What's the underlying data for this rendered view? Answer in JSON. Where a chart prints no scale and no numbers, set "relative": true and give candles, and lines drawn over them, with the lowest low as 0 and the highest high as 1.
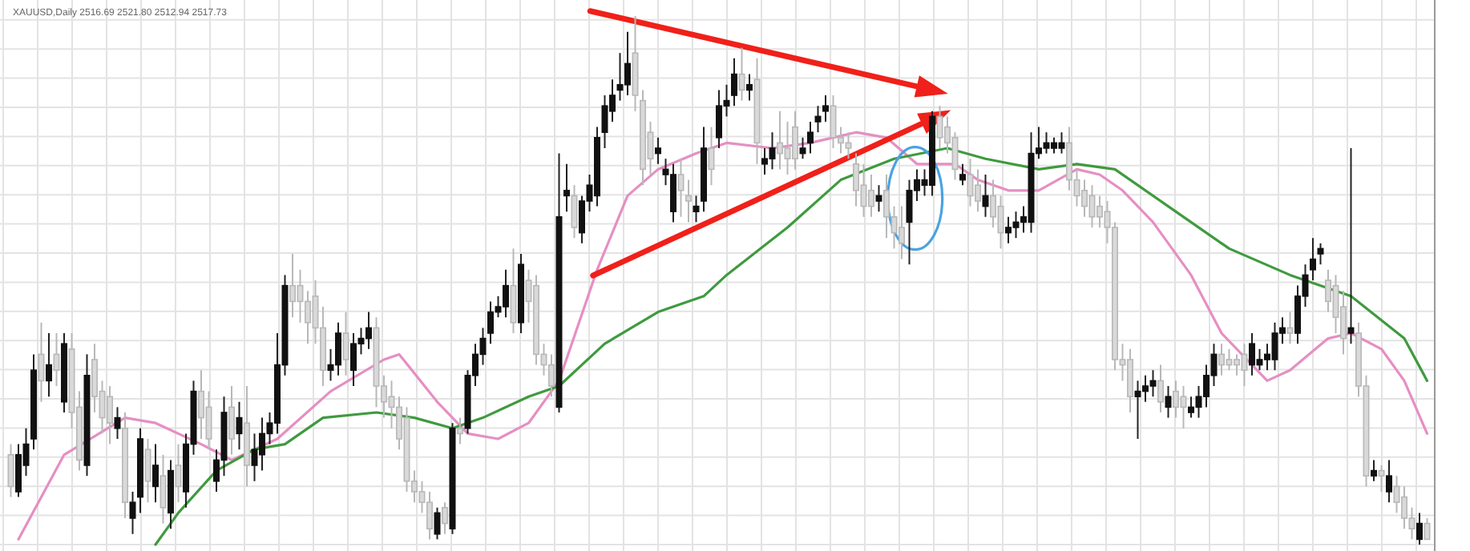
{
  "chart_data": {
    "type": "candlestick",
    "title": "XAUUSD,Daily 2516.69 2521.80 2512.94 2517.73",
    "relative": true,
    "grid": true,
    "categories": [
      null,
      null,
      null,
      null,
      null,
      null,
      null,
      null,
      null,
      null,
      null,
      null,
      null,
      null,
      null,
      null,
      null,
      null,
      null,
      null,
      null,
      null,
      null,
      null,
      null,
      null,
      null,
      null,
      null,
      null,
      null,
      null,
      null,
      null,
      null,
      null,
      null,
      null,
      null,
      null,
      null,
      null,
      null,
      null,
      null,
      null,
      null,
      null,
      null,
      null,
      null,
      null,
      null,
      null,
      null,
      null,
      null,
      null,
      null,
      null,
      null,
      null,
      null,
      null,
      null,
      null,
      null,
      null,
      null,
      null,
      null,
      null,
      null,
      null,
      null,
      null,
      null,
      null,
      null,
      null,
      null,
      null,
      null,
      null,
      null,
      null,
      null,
      null,
      null,
      null,
      null,
      null,
      null,
      null,
      null,
      null,
      null,
      null,
      null,
      null,
      null,
      null,
      null,
      null,
      null,
      null,
      null,
      null,
      null,
      null,
      null,
      null,
      null,
      null,
      null,
      null,
      null,
      null,
      null,
      null,
      null,
      null,
      null,
      null,
      null,
      null,
      null,
      null,
      null,
      null,
      null,
      null,
      null,
      null,
      null,
      null,
      null,
      null,
      null,
      null,
      null,
      null,
      null,
      null,
      null,
      null,
      null,
      null,
      null,
      null,
      null,
      null,
      null,
      null,
      null,
      null,
      null,
      null,
      null,
      null,
      null,
      null,
      null,
      null,
      null,
      null,
      null,
      null,
      null,
      null,
      null,
      null,
      null,
      null,
      null,
      null,
      null,
      null,
      null,
      null,
      null,
      null,
      null,
      null,
      null,
      null,
      null
    ],
    "ohlc": [
      [
        0.17,
        0.19,
        0.09,
        0.11
      ],
      [
        0.1,
        0.19,
        0.09,
        0.17
      ],
      [
        0.15,
        0.22,
        0.13,
        0.19
      ],
      [
        0.2,
        0.36,
        0.18,
        0.33
      ],
      [
        0.36,
        0.42,
        0.27,
        0.31
      ],
      [
        0.31,
        0.4,
        0.28,
        0.34
      ],
      [
        0.36,
        0.4,
        0.3,
        0.33
      ],
      [
        0.27,
        0.4,
        0.25,
        0.38
      ],
      [
        0.37,
        0.4,
        0.22,
        0.25
      ],
      [
        0.26,
        0.29,
        0.14,
        0.16
      ],
      [
        0.15,
        0.36,
        0.13,
        0.32
      ],
      [
        0.35,
        0.38,
        0.25,
        0.28
      ],
      [
        0.29,
        0.31,
        0.21,
        0.24
      ],
      [
        0.28,
        0.3,
        0.19,
        0.23
      ],
      [
        0.22,
        0.26,
        0.2,
        0.24
      ],
      [
        0.22,
        0.25,
        0.05,
        0.08
      ],
      [
        0.05,
        0.1,
        0.02,
        0.08
      ],
      [
        0.09,
        0.22,
        0.06,
        0.2
      ],
      [
        0.18,
        0.2,
        0.08,
        0.12
      ],
      [
        0.11,
        0.19,
        0.08,
        0.15
      ],
      [
        0.13,
        0.17,
        0.04,
        0.07
      ],
      [
        0.06,
        0.16,
        0.03,
        0.14
      ],
      [
        0.15,
        0.19,
        0.08,
        0.11
      ],
      [
        0.1,
        0.21,
        0.07,
        0.19
      ],
      [
        0.19,
        0.31,
        0.17,
        0.29
      ],
      [
        0.29,
        0.33,
        0.2,
        0.24
      ],
      [
        0.26,
        0.29,
        0.18,
        0.2
      ],
      [
        0.12,
        0.18,
        0.1,
        0.16
      ],
      [
        0.16,
        0.28,
        0.13,
        0.25
      ],
      [
        0.26,
        0.3,
        0.17,
        0.2
      ],
      [
        0.21,
        0.27,
        0.18,
        0.24
      ],
      [
        0.23,
        0.3,
        0.11,
        0.15
      ],
      [
        0.15,
        0.21,
        0.12,
        0.18
      ],
      [
        0.17,
        0.24,
        0.14,
        0.21
      ],
      [
        0.21,
        0.25,
        0.19,
        0.23
      ],
      [
        0.23,
        0.4,
        0.21,
        0.34
      ],
      [
        0.34,
        0.51,
        0.32,
        0.49
      ],
      [
        0.49,
        0.55,
        0.43,
        0.46
      ],
      [
        0.49,
        0.52,
        0.42,
        0.46
      ],
      [
        0.46,
        0.48,
        0.38,
        0.42
      ],
      [
        0.47,
        0.5,
        0.38,
        0.41
      ],
      [
        0.41,
        0.45,
        0.3,
        0.33
      ],
      [
        0.33,
        0.37,
        0.31,
        0.34
      ],
      [
        0.34,
        0.42,
        0.32,
        0.4
      ],
      [
        0.4,
        0.44,
        0.32,
        0.35
      ],
      [
        0.33,
        0.4,
        0.3,
        0.38
      ],
      [
        0.38,
        0.41,
        0.36,
        0.39
      ],
      [
        0.39,
        0.44,
        0.37,
        0.41
      ],
      [
        0.41,
        0.43,
        0.26,
        0.3
      ],
      [
        0.3,
        0.32,
        0.24,
        0.27
      ],
      [
        0.28,
        0.31,
        0.22,
        0.26
      ],
      [
        0.26,
        0.28,
        0.18,
        0.2
      ],
      [
        0.24,
        0.26,
        0.1,
        0.12
      ],
      [
        0.12,
        0.14,
        0.08,
        0.1
      ],
      [
        0.1,
        0.12,
        0.06,
        0.08
      ],
      [
        0.08,
        0.1,
        0.01,
        0.03
      ],
      [
        0.02,
        0.07,
        0.01,
        0.06
      ],
      [
        0.07,
        0.08,
        0.02,
        0.04
      ],
      [
        0.03,
        0.23,
        0.02,
        0.22
      ],
      [
        0.22,
        0.24,
        0.19,
        0.21
      ],
      [
        0.22,
        0.33,
        0.21,
        0.32
      ],
      [
        0.32,
        0.38,
        0.3,
        0.36
      ],
      [
        0.36,
        0.41,
        0.34,
        0.39
      ],
      [
        0.4,
        0.46,
        0.38,
        0.44
      ],
      [
        0.44,
        0.47,
        0.43,
        0.45
      ],
      [
        0.45,
        0.52,
        0.43,
        0.49
      ],
      [
        0.49,
        0.56,
        0.4,
        0.42
      ],
      [
        0.42,
        0.55,
        0.4,
        0.53
      ],
      [
        0.5,
        0.52,
        0.42,
        0.46
      ],
      [
        0.49,
        0.51,
        0.34,
        0.36
      ],
      [
        0.36,
        0.38,
        0.32,
        0.34
      ],
      [
        0.34,
        0.36,
        0.28,
        0.3
      ],
      [
        0.26,
        0.74,
        0.25,
        0.62
      ],
      [
        0.66,
        0.72,
        0.63,
        0.67
      ],
      [
        0.66,
        0.68,
        0.58,
        0.6
      ],
      [
        0.59,
        0.66,
        0.57,
        0.65
      ],
      [
        0.65,
        0.7,
        0.63,
        0.68
      ],
      [
        0.66,
        0.79,
        0.64,
        0.77
      ],
      [
        0.78,
        0.85,
        0.75,
        0.83
      ],
      [
        0.82,
        0.88,
        0.8,
        0.85
      ],
      [
        0.86,
        0.93,
        0.84,
        0.87
      ],
      [
        0.87,
        0.97,
        0.85,
        0.91
      ],
      [
        0.93,
        1,
        0.82,
        0.85
      ],
      [
        0.84,
        0.86,
        0.68,
        0.71
      ],
      [
        0.78,
        0.8,
        0.7,
        0.73
      ],
      [
        0.74,
        0.77,
        0.72,
        0.75
      ],
      [
        0.7,
        0.73,
        0.68,
        0.71
      ],
      [
        0.63,
        0.72,
        0.61,
        0.7
      ],
      [
        0.7,
        0.73,
        0.62,
        0.67
      ],
      [
        0.66,
        0.69,
        0.61,
        0.65
      ],
      [
        0.63,
        0.66,
        0.61,
        0.64
      ],
      [
        0.65,
        0.79,
        0.63,
        0.75
      ],
      [
        0.75,
        0.79,
        0.68,
        0.71
      ],
      [
        0.77,
        0.86,
        0.75,
        0.83
      ],
      [
        0.83,
        0.87,
        0.81,
        0.84
      ],
      [
        0.85,
        0.92,
        0.83,
        0.89
      ],
      [
        0.89,
        0.94,
        0.84,
        0.86
      ],
      [
        0.86,
        0.89,
        0.84,
        0.87
      ],
      [
        0.88,
        0.92,
        0.72,
        0.76
      ],
      [
        0.72,
        0.75,
        0.7,
        0.73
      ],
      [
        0.73,
        0.78,
        0.71,
        0.75
      ],
      [
        0.76,
        0.82,
        0.71,
        0.74
      ],
      [
        0.75,
        0.8,
        0.7,
        0.73
      ],
      [
        0.79,
        0.82,
        0.71,
        0.73
      ],
      [
        0.74,
        0.77,
        0.73,
        0.75
      ],
      [
        0.76,
        0.8,
        0.74,
        0.78
      ],
      [
        0.8,
        0.83,
        0.78,
        0.81
      ],
      [
        0.82,
        0.85,
        0.8,
        0.83
      ],
      [
        0.83,
        0.85,
        0.75,
        0.77
      ],
      [
        0.77,
        0.79,
        0.74,
        0.76
      ],
      [
        0.76,
        0.78,
        0.73,
        0.75
      ],
      [
        0.72,
        0.74,
        0.64,
        0.67
      ],
      [
        0.68,
        0.72,
        0.62,
        0.64
      ],
      [
        0.67,
        0.7,
        0.62,
        0.64
      ],
      [
        0.65,
        0.68,
        0.63,
        0.66
      ],
      [
        0.67,
        0.7,
        0.58,
        0.62
      ],
      [
        0.62,
        0.64,
        0.56,
        0.59
      ],
      [
        0.6,
        0.64,
        0.54,
        0.57
      ],
      [
        0.61,
        0.69,
        0.53,
        0.67
      ],
      [
        0.67,
        0.71,
        0.65,
        0.69
      ],
      [
        0.68,
        0.71,
        0.66,
        0.69
      ],
      [
        0.68,
        0.82,
        0.66,
        0.81
      ],
      [
        0.81,
        0.83,
        0.75,
        0.77
      ],
      [
        0.79,
        0.81,
        0.74,
        0.76
      ],
      [
        0.77,
        0.78,
        0.69,
        0.71
      ],
      [
        0.69,
        0.72,
        0.68,
        0.7
      ],
      [
        0.7,
        0.73,
        0.64,
        0.66
      ],
      [
        0.68,
        0.71,
        0.63,
        0.65
      ],
      [
        0.64,
        0.7,
        0.62,
        0.66
      ],
      [
        0.66,
        0.69,
        0.6,
        0.62
      ],
      [
        0.64,
        0.66,
        0.56,
        0.59
      ],
      [
        0.59,
        0.62,
        0.57,
        0.6
      ],
      [
        0.6,
        0.63,
        0.58,
        0.61
      ],
      [
        0.61,
        0.64,
        0.59,
        0.62
      ],
      [
        0.61,
        0.78,
        0.59,
        0.74
      ],
      [
        0.74,
        0.79,
        0.73,
        0.75
      ],
      [
        0.75,
        0.78,
        0.74,
        0.76
      ],
      [
        0.75,
        0.77,
        0.74,
        0.76
      ],
      [
        0.75,
        0.78,
        0.74,
        0.76
      ],
      [
        0.76,
        0.79,
        0.67,
        0.69
      ],
      [
        0.69,
        0.71,
        0.64,
        0.66
      ],
      [
        0.67,
        0.69,
        0.62,
        0.64
      ],
      [
        0.66,
        0.68,
        0.6,
        0.62
      ],
      [
        0.64,
        0.66,
        0.6,
        0.62
      ],
      [
        0.63,
        0.65,
        0.57,
        0.6
      ],
      [
        0.6,
        0.61,
        0.33,
        0.35
      ],
      [
        0.35,
        0.38,
        0.31,
        0.34
      ],
      [
        0.35,
        0.37,
        0.25,
        0.28
      ],
      [
        0.28,
        0.31,
        0.2,
        0.29
      ],
      [
        0.29,
        0.32,
        0.27,
        0.3
      ],
      [
        0.3,
        0.33,
        0.28,
        0.31
      ],
      [
        0.31,
        0.34,
        0.25,
        0.27
      ],
      [
        0.26,
        0.3,
        0.24,
        0.28
      ],
      [
        0.29,
        0.31,
        0.24,
        0.26
      ],
      [
        0.28,
        0.3,
        0.22,
        0.26
      ],
      [
        0.25,
        0.28,
        0.24,
        0.26
      ],
      [
        0.26,
        0.3,
        0.24,
        0.28
      ],
      [
        0.28,
        0.34,
        0.26,
        0.32
      ],
      [
        0.32,
        0.38,
        0.3,
        0.36
      ],
      [
        0.36,
        0.38,
        0.32,
        0.34
      ],
      [
        0.35,
        0.37,
        0.33,
        0.34
      ],
      [
        0.35,
        0.36,
        0.32,
        0.34
      ],
      [
        0.36,
        0.38,
        0.3,
        0.33
      ],
      [
        0.34,
        0.4,
        0.32,
        0.38
      ],
      [
        0.34,
        0.37,
        0.33,
        0.35
      ],
      [
        0.35,
        0.38,
        0.33,
        0.36
      ],
      [
        0.35,
        0.42,
        0.33,
        0.4
      ],
      [
        0.4,
        0.43,
        0.38,
        0.41
      ],
      [
        0.41,
        0.44,
        0.38,
        0.4
      ],
      [
        0.4,
        0.49,
        0.38,
        0.47
      ],
      [
        0.47,
        0.53,
        0.45,
        0.51
      ],
      [
        0.52,
        0.58,
        0.5,
        0.54
      ],
      [
        0.55,
        0.57,
        0.53,
        0.56
      ],
      [
        0.5,
        0.52,
        0.44,
        0.46
      ],
      [
        0.49,
        0.51,
        0.4,
        0.43
      ],
      [
        0.45,
        0.48,
        0.36,
        0.39
      ],
      [
        0.4,
        0.75,
        0.38,
        0.41
      ],
      [
        0.4,
        0.42,
        0.28,
        0.3
      ],
      [
        0.3,
        0.32,
        0.11,
        0.13
      ],
      [
        0.13,
        0.16,
        0.12,
        0.14
      ],
      [
        0.14,
        0.15,
        0.1,
        0.13
      ],
      [
        0.1,
        0.16,
        0.08,
        0.13
      ],
      [
        0.11,
        0.13,
        0.06,
        0.08
      ],
      [
        0.09,
        0.11,
        0.03,
        0.05
      ],
      [
        0.05,
        0.07,
        0.01,
        0.03
      ],
      [
        0.01,
        0.06,
        0,
        0.04
      ],
      [
        0.04,
        0.05,
        0.01,
        0.01
      ]
    ],
    "series": [
      {
        "type": "line",
        "color": "#e58fc3",
        "values": [
          null,
          0.01,
          null,
          null,
          null,
          null,
          null,
          0.17,
          null,
          null,
          null,
          null,
          null,
          null,
          null,
          0.24,
          null,
          null,
          null,
          0.23,
          null,
          null,
          null,
          null,
          null,
          0.19,
          null,
          null,
          null,
          0.16,
          null,
          null,
          null,
          null,
          null,
          0.2,
          null,
          null,
          null,
          null,
          null,
          null,
          0.29,
          null,
          null,
          null,
          null,
          null,
          null,
          0.35,
          null,
          0.36,
          null,
          null,
          null,
          null,
          0.27,
          null,
          null,
          null,
          0.21,
          null,
          null,
          null,
          0.2,
          null,
          null,
          null,
          0.23,
          null,
          null,
          null,
          0.31,
          null,
          null,
          null,
          null,
          0.52,
          null,
          null,
          null,
          0.66,
          null,
          null,
          null,
          0.71,
          null,
          null,
          null,
          null,
          0.74,
          null,
          null,
          null,
          0.76,
          null,
          null,
          null,
          null,
          null,
          0.75,
          null,
          null,
          null,
          null,
          0.76,
          null,
          null,
          null,
          null,
          null,
          0.78,
          null,
          null,
          null,
          0.77,
          null,
          null,
          null,
          0.72,
          null,
          null,
          null,
          null,
          0.72,
          null,
          null,
          0.69,
          null,
          null,
          null,
          0.67,
          null,
          null,
          null,
          0.67,
          null,
          null,
          null,
          null,
          0.71,
          null,
          null,
          0.7,
          null,
          null,
          0.67,
          null,
          null,
          null,
          0.61,
          null,
          null,
          null,
          null,
          0.51,
          null,
          null,
          null,
          0.4,
          null,
          null,
          null,
          null,
          null,
          0.31,
          null,
          null,
          0.33,
          null,
          null,
          null,
          null,
          0.39,
          null,
          null,
          0.4,
          null,
          null,
          null,
          0.37,
          null,
          null,
          0.31,
          null,
          null,
          0.21
        ]
      },
      {
        "type": "line",
        "color": "#3f9a3f",
        "values": [
          null,
          null,
          null,
          null,
          null,
          null,
          null,
          null,
          null,
          null,
          null,
          null,
          null,
          null,
          null,
          null,
          null,
          null,
          null,
          0.0,
          null,
          null,
          0.06,
          null,
          null,
          null,
          null,
          0.14,
          null,
          null,
          null,
          null,
          0.18,
          null,
          null,
          null,
          0.19,
          null,
          null,
          null,
          null,
          0.24,
          null,
          null,
          null,
          null,
          null,
          null,
          0.25,
          null,
          null,
          null,
          null,
          0.24,
          null,
          null,
          null,
          null,
          0.22,
          null,
          null,
          null,
          0.24,
          null,
          null,
          null,
          null,
          null,
          0.28,
          null,
          null,
          null,
          0.3,
          null,
          null,
          null,
          null,
          null,
          0.38,
          null,
          null,
          null,
          null,
          null,
          null,
          0.44,
          null,
          null,
          null,
          null,
          null,
          0.47,
          null,
          null,
          0.51,
          null,
          null,
          null,
          null,
          null,
          null,
          null,
          0.6,
          null,
          null,
          null,
          null,
          null,
          null,
          0.69,
          null,
          null,
          null,
          null,
          null,
          null,
          0.73,
          null,
          null,
          null,
          null,
          null,
          null,
          0.75,
          null,
          null,
          null,
          null,
          0.73,
          null,
          null,
          null,
          null,
          null,
          null,
          0.71,
          null,
          null,
          null,
          null,
          0.72,
          null,
          null,
          null,
          null,
          0.71,
          null,
          null,
          null,
          null,
          null,
          null,
          0.64,
          null,
          null,
          null,
          null,
          null,
          null,
          null,
          0.56,
          null,
          null,
          null,
          null,
          null,
          null,
          null,
          0.51,
          null,
          null,
          null,
          null,
          null,
          null,
          null,
          0.47,
          null,
          null,
          null,
          null,
          null,
          null,
          0.39,
          null,
          null,
          0.31
        ]
      }
    ]
  }
}
